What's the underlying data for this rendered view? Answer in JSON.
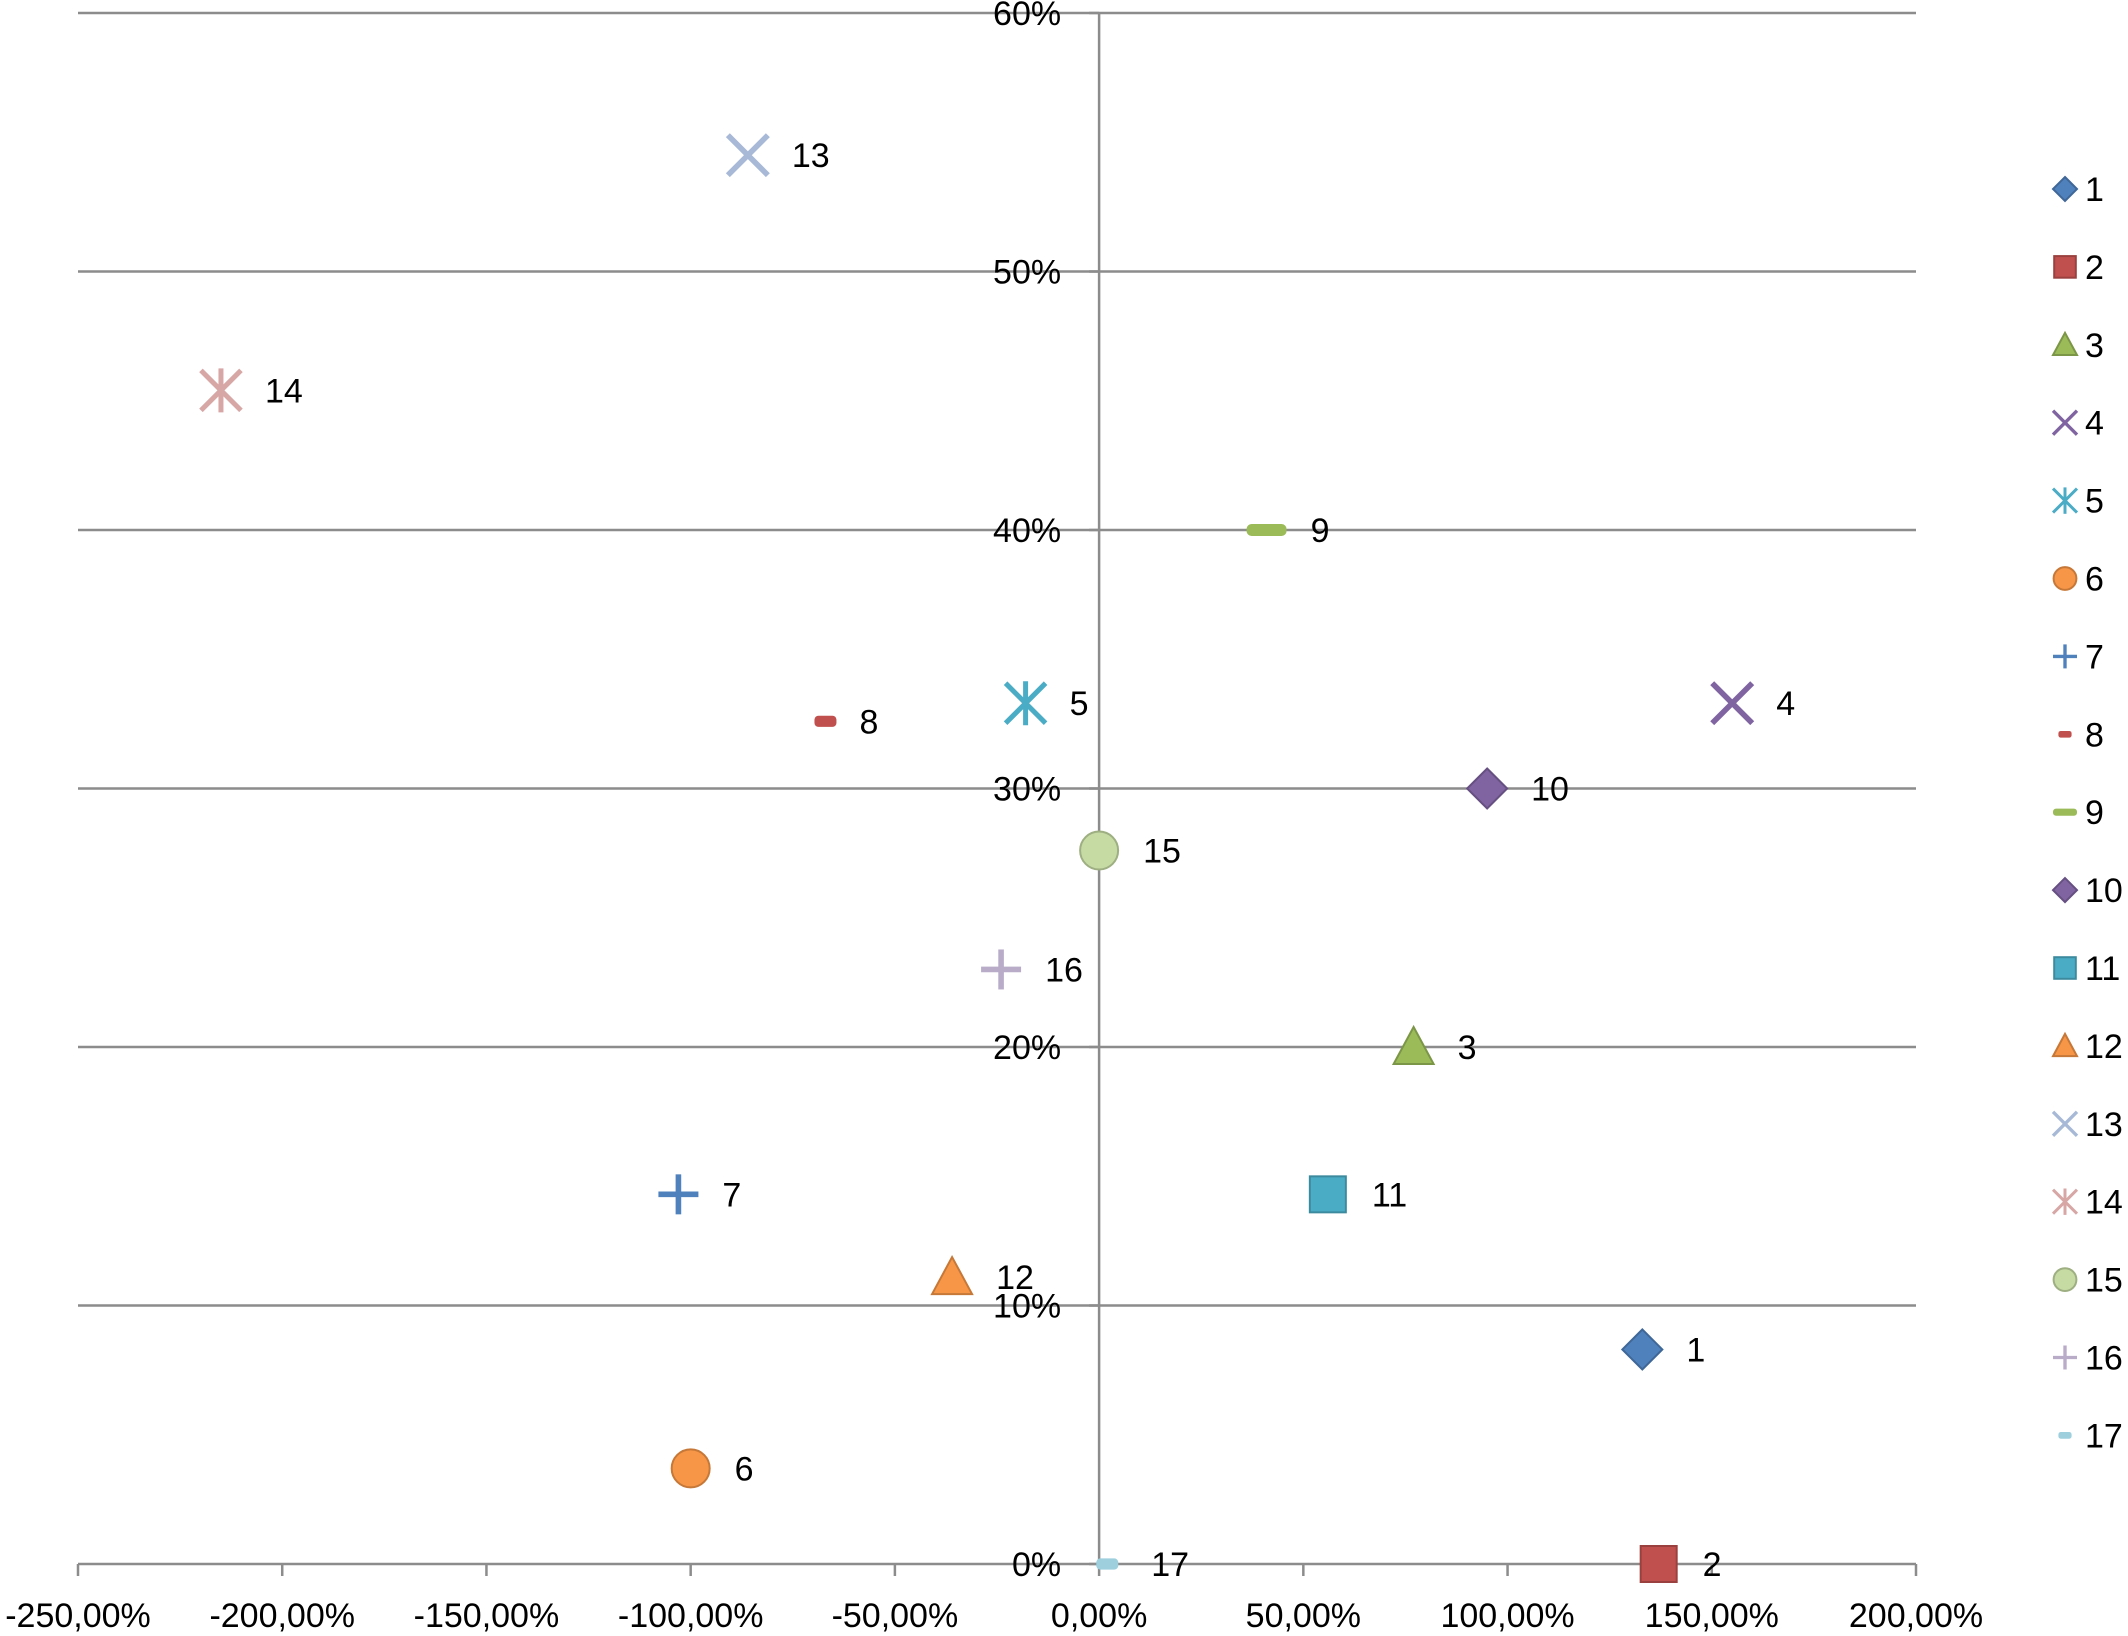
{
  "chart_data": {
    "type": "scatter",
    "title": "",
    "xlabel": "",
    "ylabel": "",
    "xlim": [
      -2.5,
      2.0
    ],
    "ylim": [
      0,
      0.6
    ],
    "x_ticks": [
      {
        "value": -2.5,
        "label": "-250,00%"
      },
      {
        "value": -2.0,
        "label": "-200,00%"
      },
      {
        "value": -1.5,
        "label": "-150,00%"
      },
      {
        "value": -1.0,
        "label": "-100,00%"
      },
      {
        "value": -0.5,
        "label": "-50,00%"
      },
      {
        "value": 0.0,
        "label": "0,00%"
      },
      {
        "value": 0.5,
        "label": "50,00%"
      },
      {
        "value": 1.0,
        "label": "100,00%"
      },
      {
        "value": 1.5,
        "label": "150,00%"
      },
      {
        "value": 2.0,
        "label": "200,00%"
      }
    ],
    "y_ticks": [
      {
        "value": 0.0,
        "label": "0%"
      },
      {
        "value": 0.1,
        "label": "10%"
      },
      {
        "value": 0.2,
        "label": "20%"
      },
      {
        "value": 0.3,
        "label": "30%"
      },
      {
        "value": 0.4,
        "label": "40%"
      },
      {
        "value": 0.5,
        "label": "50%"
      },
      {
        "value": 0.6,
        "label": "60%"
      }
    ],
    "grid": "horizontal",
    "legend_position": "right",
    "series": [
      {
        "name": "1",
        "x": 1.33,
        "y": 0.083,
        "marker": "diamond",
        "color": "#4f81bd"
      },
      {
        "name": "2",
        "x": 1.37,
        "y": 0.0,
        "marker": "square",
        "color": "#c0504d"
      },
      {
        "name": "3",
        "x": 0.77,
        "y": 0.2,
        "marker": "triangle",
        "color": "#9bbb59"
      },
      {
        "name": "4",
        "x": 1.55,
        "y": 0.333,
        "marker": "x",
        "color": "#8064a2"
      },
      {
        "name": "5",
        "x": -0.18,
        "y": 0.333,
        "marker": "star",
        "color": "#4bacc6"
      },
      {
        "name": "6",
        "x": -1.0,
        "y": 0.037,
        "marker": "circle",
        "color": "#f79646"
      },
      {
        "name": "7",
        "x": -1.03,
        "y": 0.143,
        "marker": "plus",
        "color": "#4f81bd"
      },
      {
        "name": "8",
        "x": -0.67,
        "y": 0.326,
        "marker": "dash",
        "color": "#c0504d"
      },
      {
        "name": "9",
        "x": 0.41,
        "y": 0.4,
        "marker": "longdash",
        "color": "#9bbb59"
      },
      {
        "name": "10",
        "x": 0.95,
        "y": 0.3,
        "marker": "diamond",
        "color": "#8064a2"
      },
      {
        "name": "11",
        "x": 0.56,
        "y": 0.143,
        "marker": "square",
        "color": "#4bacc6"
      },
      {
        "name": "12",
        "x": -0.36,
        "y": 0.111,
        "marker": "triangle",
        "color": "#f79646"
      },
      {
        "name": "13",
        "x": -0.86,
        "y": 0.545,
        "marker": "x",
        "color": "#a7b9d7"
      },
      {
        "name": "14",
        "x": -2.15,
        "y": 0.454,
        "marker": "star",
        "color": "#d7a7a6"
      },
      {
        "name": "15",
        "x": 0.0,
        "y": 0.276,
        "marker": "circle",
        "color": "#c6dba3"
      },
      {
        "name": "16",
        "x": -0.24,
        "y": 0.23,
        "marker": "plus",
        "color": "#b8acc9"
      },
      {
        "name": "17",
        "x": 0.02,
        "y": 0.0,
        "marker": "dash",
        "color": "#9dcfdd"
      }
    ]
  }
}
